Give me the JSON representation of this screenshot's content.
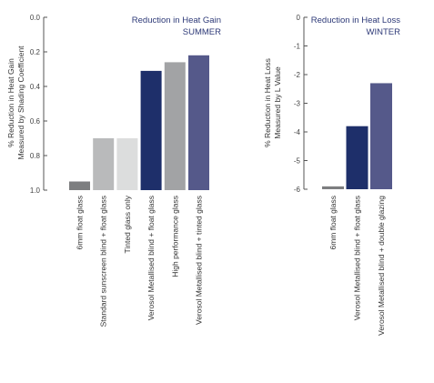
{
  "chart_data": [
    {
      "type": "bar",
      "title": "Reduction in Heat Gain",
      "subtitle": "SUMMER",
      "ylabel": [
        "% Reduction in Heat Gain",
        "Measured by Shading Coefficient"
      ],
      "xlabel": "",
      "ylim": [
        0,
        1.0
      ],
      "y_inverted": true,
      "yticks": [
        "0.0",
        "0.2",
        "0.4",
        "0.6",
        "0.8",
        "1.0"
      ],
      "ytick_values": [
        0.0,
        0.2,
        0.4,
        0.6,
        0.8,
        1.0
      ],
      "categories": [
        "6mm float glass",
        "Standard sunscreen blind + float glass",
        "Tinted glass only",
        "Verosol Metallised blind + float glass",
        "High performance glass",
        "Verosol Metallised blind + tinted glass"
      ],
      "values": [
        0.95,
        0.7,
        0.7,
        0.31,
        0.26,
        0.22
      ],
      "colors": [
        "#7d7e80",
        "#b9babb",
        "#dcdddd",
        "#1e2f6a",
        "#a2a3a5",
        "#55598a"
      ],
      "grid": false
    },
    {
      "type": "bar",
      "title": "Reduction in Heat Loss",
      "subtitle": "WINTER",
      "ylabel": [
        "% Reduction in Heat Loss",
        "Measured by L Value"
      ],
      "xlabel": "",
      "ylim": [
        0,
        -6
      ],
      "yticks": [
        "0",
        "-1",
        "-2",
        "-3",
        "-4",
        "-5",
        "-6"
      ],
      "ytick_values": [
        0,
        -1,
        -2,
        -3,
        -4,
        -5,
        -6
      ],
      "categories": [
        "6mm float glass",
        "Verosol Metallised blind + float glass",
        "Verosol Metallised blind + double glazing"
      ],
      "values": [
        -5.9,
        -3.8,
        -2.3
      ],
      "colors": [
        "#7d7e80",
        "#1e2f6a",
        "#55598a"
      ],
      "grid": false
    }
  ]
}
